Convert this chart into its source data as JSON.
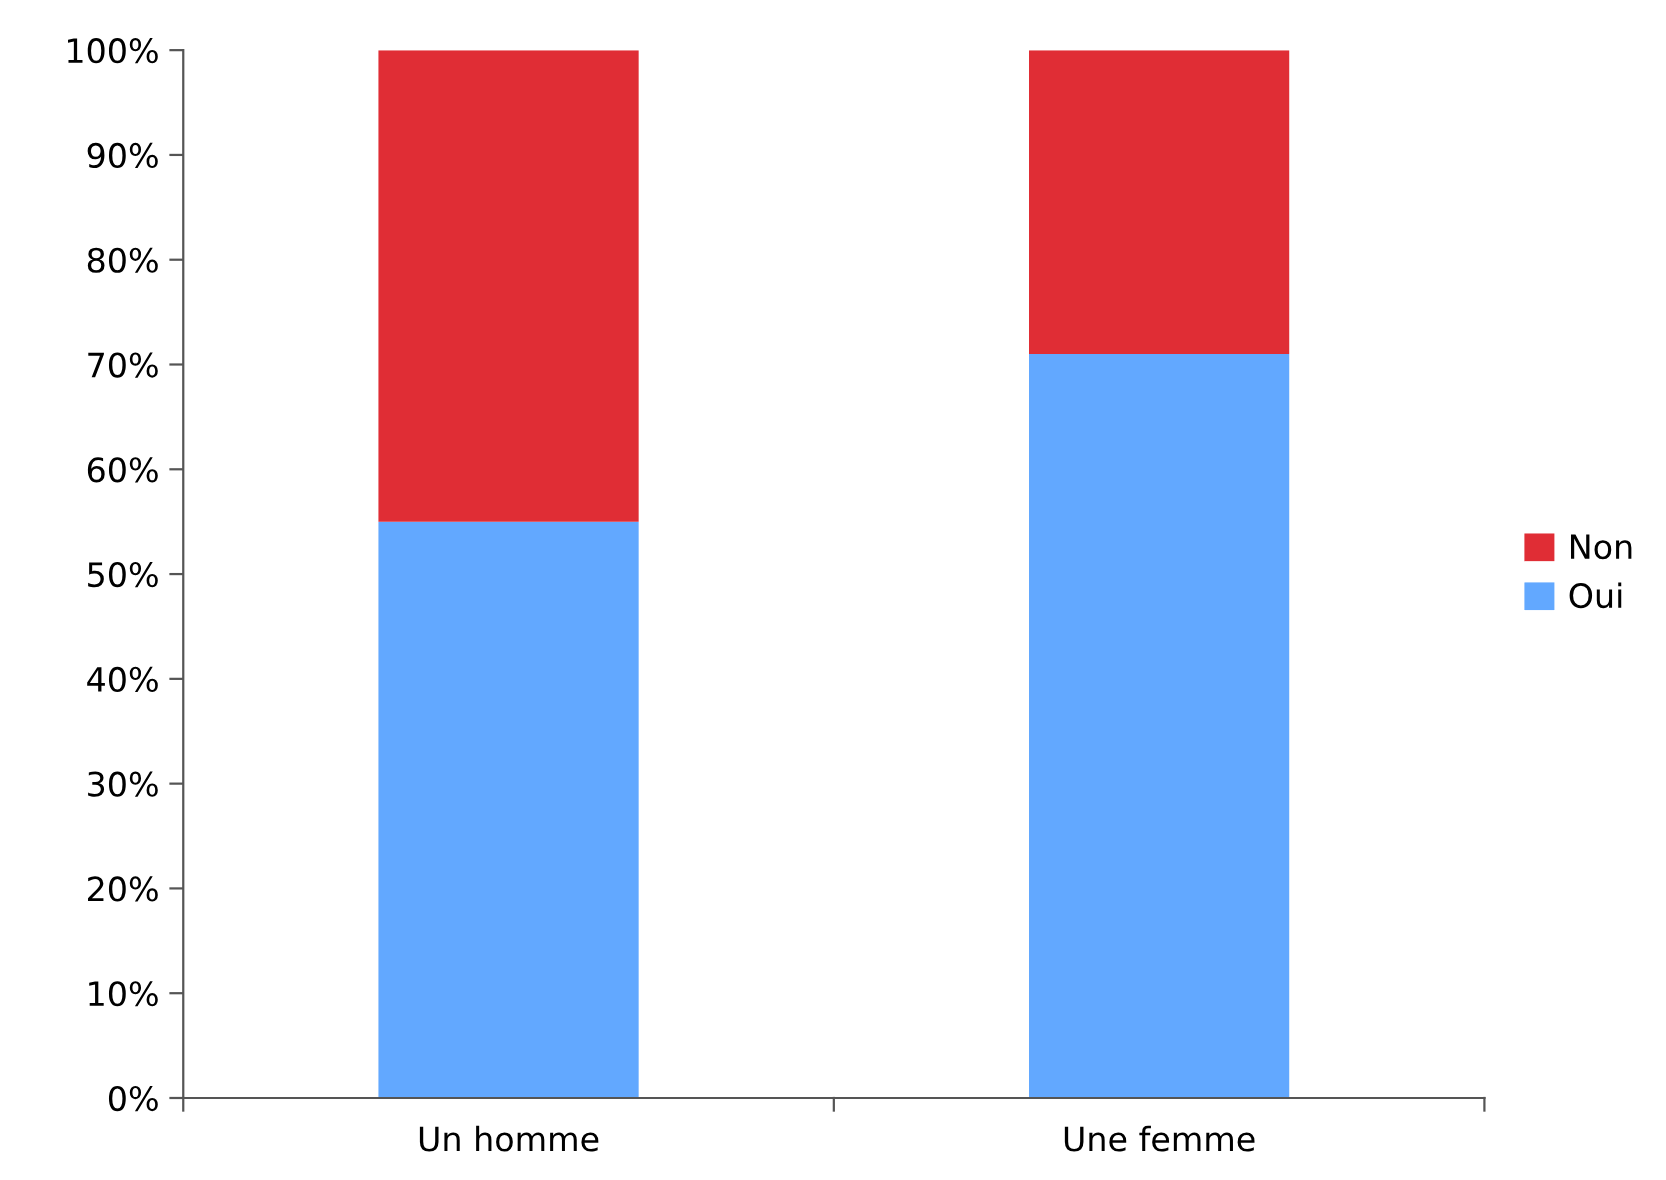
{
  "chart_data": {
    "type": "bar",
    "stacked": true,
    "categories": [
      "Un homme",
      "Une femme"
    ],
    "series": [
      {
        "name": "Oui",
        "color": "#62a8ff",
        "values": [
          55,
          71
        ]
      },
      {
        "name": "Non",
        "color": "#e02d35",
        "values": [
          45,
          29
        ]
      }
    ],
    "ylim": [
      0,
      100
    ],
    "yticks": [
      {
        "value": 0,
        "label": "0%"
      },
      {
        "value": 10,
        "label": "10%"
      },
      {
        "value": 20,
        "label": "20%"
      },
      {
        "value": 30,
        "label": "30%"
      },
      {
        "value": 40,
        "label": "40%"
      },
      {
        "value": 50,
        "label": "50%"
      },
      {
        "value": 60,
        "label": "60%"
      },
      {
        "value": 70,
        "label": "70%"
      },
      {
        "value": 80,
        "label": "80%"
      },
      {
        "value": 90,
        "label": "90%"
      },
      {
        "value": 100,
        "label": "100%"
      }
    ],
    "grid": false,
    "legend": "right"
  }
}
